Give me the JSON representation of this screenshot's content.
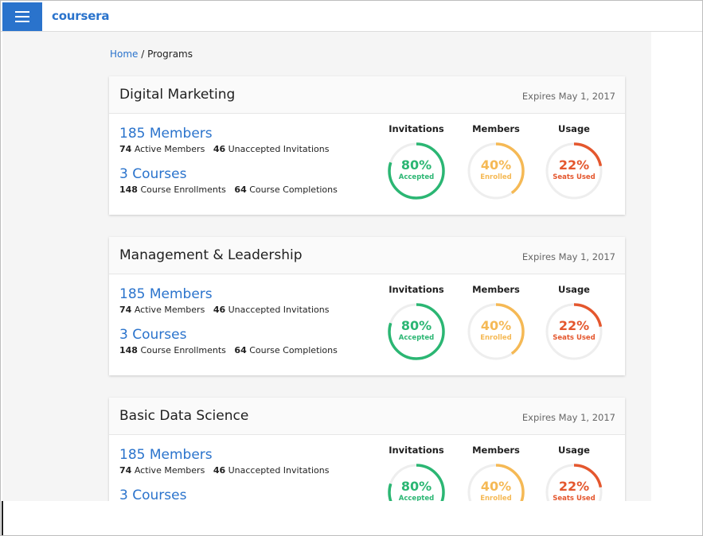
{
  "app": {
    "logo": "coursera"
  },
  "colors": {
    "brand": "#2a73cc",
    "invitations": "#2bb673",
    "members": "#f5b955",
    "usage": "#e4572e",
    "track": "#eeeeee"
  },
  "breadcrumb": {
    "home": "Home",
    "separator": " / ",
    "current": "Programs"
  },
  "stat_labels": {
    "invitations": "Invitations",
    "members": "Members",
    "usage": "Usage"
  },
  "programs": [
    {
      "title": "Digital Marketing",
      "expires": "Expires May 1, 2017",
      "members_link": "185 Members",
      "active_count": "74",
      "active_label": "Active Members",
      "unaccepted_count": "46",
      "unaccepted_label": "Unaccepted Invitations",
      "courses_link": "3 Courses",
      "enrollments_count": "148",
      "enrollments_label": "Course Enrollments",
      "completions_count": "64",
      "completions_label": "Course Completions",
      "invitations_pct": "80%",
      "invitations_sub": "Accepted",
      "invitations_value": 0.8,
      "members_pct": "40%",
      "members_sub": "Enrolled",
      "members_value": 0.4,
      "usage_pct": "22%",
      "usage_sub": "Seats Used",
      "usage_value": 0.22
    },
    {
      "title": "Management & Leadership",
      "expires": "Expires May 1, 2017",
      "members_link": "185 Members",
      "active_count": "74",
      "active_label": "Active Members",
      "unaccepted_count": "46",
      "unaccepted_label": "Unaccepted Invitations",
      "courses_link": "3 Courses",
      "enrollments_count": "148",
      "enrollments_label": "Course Enrollments",
      "completions_count": "64",
      "completions_label": "Course Completions",
      "invitations_pct": "80%",
      "invitations_sub": "Accepted",
      "invitations_value": 0.8,
      "members_pct": "40%",
      "members_sub": "Enrolled",
      "members_value": 0.4,
      "usage_pct": "22%",
      "usage_sub": "Seats Used",
      "usage_value": 0.22
    },
    {
      "title": "Basic Data Science",
      "expires": "Expires May 1, 2017",
      "members_link": "185 Members",
      "active_count": "74",
      "active_label": "Active Members",
      "unaccepted_count": "46",
      "unaccepted_label": "Unaccepted Invitations",
      "courses_link": "3 Courses",
      "invitations_pct": "80%",
      "invitations_sub": "Accepted",
      "invitations_value": 0.8,
      "members_pct": "40%",
      "members_sub": "Enrolled",
      "members_value": 0.4,
      "usage_pct": "22%",
      "usage_sub": "Seats Used",
      "usage_value": 0.22
    }
  ]
}
